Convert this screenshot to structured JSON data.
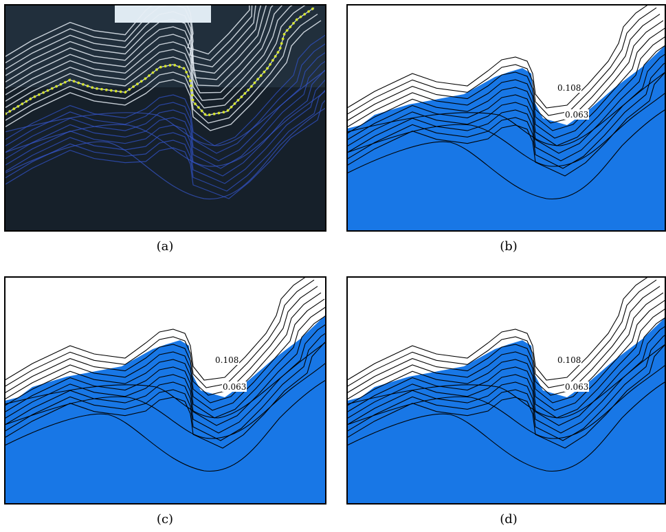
{
  "panels": [
    {
      "caption": "(a)"
    },
    {
      "caption": "(b)",
      "labels": [
        "0.108",
        "0.063"
      ]
    },
    {
      "caption": "(c)",
      "labels": [
        "0.108",
        "0.063"
      ]
    },
    {
      "caption": "(d)",
      "labels": [
        "0.108",
        "0.063"
      ]
    }
  ]
}
